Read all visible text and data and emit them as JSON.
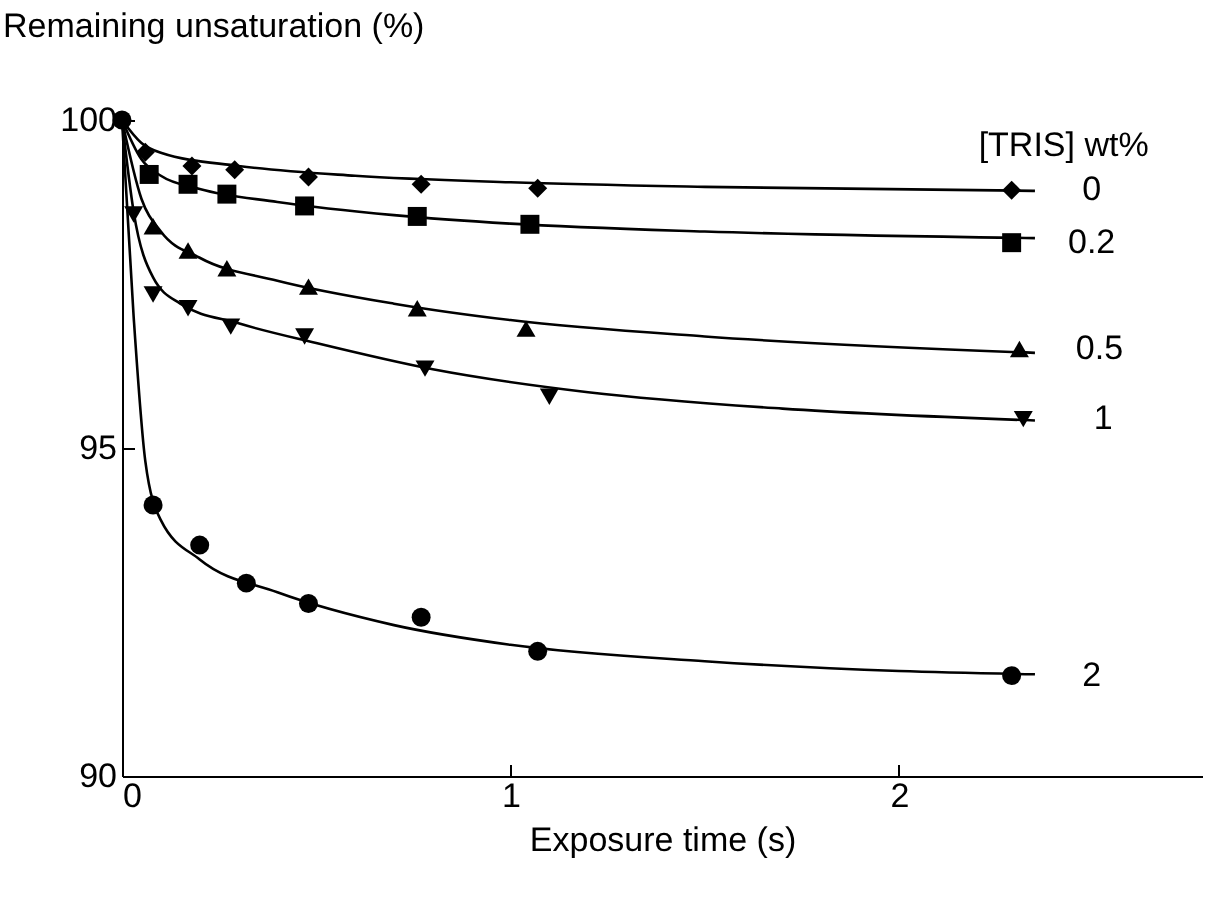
{
  "chart_data": {
    "type": "scatter",
    "xlabel": "Exposure time (s)",
    "ylabel": "Remaining unsaturation (%)",
    "legend_title": "[TRIS] wt%",
    "xlim": [
      0,
      2.78
    ],
    "xticks": [
      0,
      1,
      2
    ],
    "ylim": [
      90,
      100
    ],
    "yticks": [
      90,
      95,
      100
    ],
    "series": [
      {
        "name": "0",
        "color": "#000000",
        "marker": "diamond",
        "x": [
          0.06,
          0.18,
          0.29,
          0.48,
          0.77,
          1.07,
          2.29
        ],
        "values": [
          99.51,
          99.3,
          99.24,
          99.13,
          99.02,
          98.96,
          98.93
        ]
      },
      {
        "name": "0.2",
        "color": "#000000",
        "marker": "square",
        "x": [
          0.07,
          0.17,
          0.27,
          0.47,
          0.76,
          1.05,
          2.29
        ],
        "values": [
          99.17,
          99.02,
          98.87,
          98.69,
          98.53,
          98.41,
          98.13
        ]
      },
      {
        "name": "0.5",
        "color": "#000000",
        "marker": "triangle",
        "x": [
          0.08,
          0.17,
          0.27,
          0.48,
          0.76,
          1.04,
          2.31
        ],
        "values": [
          98.38,
          98.01,
          97.74,
          97.46,
          97.13,
          96.82,
          96.51
        ]
      },
      {
        "name": "1",
        "color": "#000000",
        "marker": "triangle-down",
        "x": [
          0.03,
          0.08,
          0.17,
          0.28,
          0.47,
          0.78,
          1.1,
          2.32
        ],
        "values": [
          98.56,
          97.34,
          97.13,
          96.85,
          96.7,
          96.21,
          95.78,
          95.44
        ]
      },
      {
        "name": "2",
        "color": "#000000",
        "marker": "circle",
        "x": [
          0,
          0.08,
          0.2,
          0.32,
          0.48,
          0.77,
          1.07,
          2.29
        ],
        "values": [
          100,
          94.13,
          93.52,
          92.94,
          92.63,
          92.42,
          91.9,
          91.53
        ]
      },
      {
        "type": "line",
        "color": "#000000",
        "marker": "none",
        "line_style": "solid",
        "x": [
          0,
          0.05,
          0.1,
          0.3,
          0.6,
          1.0,
          1.5,
          2.35
        ],
        "values": [
          100,
          99.65,
          99.5,
          99.3,
          99.15,
          99.05,
          98.98,
          98.92
        ]
      },
      {
        "type": "line",
        "color": "#000000",
        "marker": "none",
        "line_style": "solid",
        "x": [
          0,
          0.05,
          0.1,
          0.2,
          0.4,
          0.7,
          1.0,
          1.5,
          2.35
        ],
        "values": [
          100,
          99.4,
          99.15,
          98.95,
          98.75,
          98.55,
          98.42,
          98.3,
          98.2
        ]
      },
      {
        "type": "line",
        "color": "#000000",
        "marker": "none",
        "line_style": "solid",
        "x": [
          0,
          0.05,
          0.1,
          0.2,
          0.4,
          0.7,
          1.0,
          1.5,
          2.35
        ],
        "values": [
          100,
          98.8,
          98.3,
          97.9,
          97.55,
          97.2,
          96.95,
          96.7,
          96.45
        ]
      },
      {
        "type": "line",
        "color": "#000000",
        "marker": "none",
        "line_style": "solid",
        "x": [
          0,
          0.03,
          0.08,
          0.15,
          0.3,
          0.5,
          0.8,
          1.2,
          1.7,
          2.35
        ],
        "values": [
          100,
          98.6,
          97.6,
          97.2,
          96.9,
          96.6,
          96.2,
          95.85,
          95.6,
          95.42
        ]
      },
      {
        "type": "line",
        "color": "#000000",
        "marker": "none",
        "line_style": "solid",
        "x": [
          0,
          0.03,
          0.06,
          0.1,
          0.2,
          0.4,
          0.7,
          1.0,
          1.5,
          2.0,
          2.35
        ],
        "values": [
          100,
          97,
          94.8,
          93.9,
          93.3,
          92.8,
          92.3,
          92.0,
          91.75,
          91.6,
          91.55
        ]
      }
    ]
  }
}
